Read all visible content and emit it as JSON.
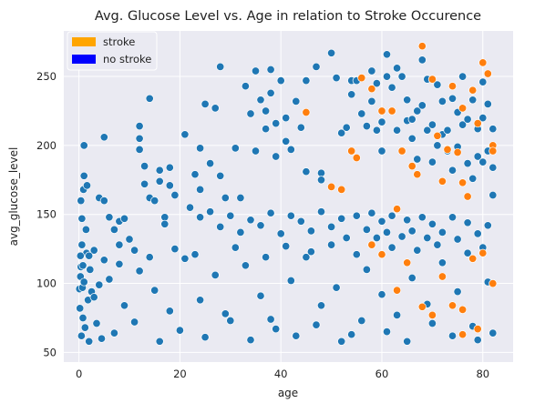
{
  "chart_data": {
    "type": "scatter",
    "title": "Avg. Glucose Level vs. Age in relation to Stroke Occurence",
    "xlabel": "age",
    "ylabel": "avg_glucose_level",
    "xlim": [
      -3,
      86
    ],
    "ylim": [
      43,
      283
    ],
    "xticks": [
      0,
      20,
      40,
      60,
      80
    ],
    "yticks": [
      50,
      100,
      150,
      200,
      250
    ],
    "grid": true,
    "background": "#eaeaf2",
    "legend": {
      "placement": "top-left",
      "entries": [
        {
          "label": "stroke",
          "color": "#ffa500"
        },
        {
          "label": "no stroke",
          "color": "#0000ff"
        }
      ]
    },
    "series": [
      {
        "color": "#1f77b4",
        "sampled": true,
        "points": [
          [
            0.1,
            96
          ],
          [
            0.2,
            82
          ],
          [
            0.3,
            105
          ],
          [
            0.4,
            112
          ],
          [
            0.5,
            62
          ],
          [
            0.6,
            128
          ],
          [
            0.7,
            97
          ],
          [
            0.8,
            75
          ],
          [
            1,
            101
          ],
          [
            1.2,
            68
          ],
          [
            1.5,
            122
          ],
          [
            1.8,
            88
          ],
          [
            2,
            58
          ],
          [
            2.2,
            110
          ],
          [
            2.5,
            94
          ],
          [
            3,
            124
          ],
          [
            3.5,
            71
          ],
          [
            4,
            99
          ],
          [
            4.5,
            60
          ],
          [
            5,
            117
          ],
          [
            1,
            200
          ],
          [
            1,
            178
          ],
          [
            0.4,
            160
          ],
          [
            0.9,
            168
          ],
          [
            1.6,
            171
          ],
          [
            0.6,
            147
          ],
          [
            1.4,
            139
          ],
          [
            0.3,
            120
          ],
          [
            0.8,
            113
          ],
          [
            5,
            206
          ],
          [
            4,
            162
          ],
          [
            5,
            160
          ],
          [
            6,
            148
          ],
          [
            8,
            145
          ],
          [
            8,
            128
          ],
          [
            7,
            139
          ],
          [
            9,
            147
          ],
          [
            10,
            132
          ],
          [
            11,
            124
          ],
          [
            12,
            214
          ],
          [
            12,
            205
          ],
          [
            12,
            197
          ],
          [
            13,
            185
          ],
          [
            13,
            172
          ],
          [
            14,
            234
          ],
          [
            14,
            162
          ],
          [
            15,
            160
          ],
          [
            16,
            182
          ],
          [
            16,
            174
          ],
          [
            17,
            148
          ],
          [
            17,
            143
          ],
          [
            18,
            184
          ],
          [
            18,
            171
          ],
          [
            19,
            164
          ],
          [
            21,
            208
          ],
          [
            23,
            179
          ],
          [
            24,
            198
          ],
          [
            24,
            168
          ],
          [
            25,
            230
          ],
          [
            26,
            187
          ],
          [
            27,
            227
          ],
          [
            28,
            257
          ],
          [
            28,
            178
          ],
          [
            29,
            162
          ],
          [
            31,
            198
          ],
          [
            32,
            162
          ],
          [
            33,
            243
          ],
          [
            34,
            223
          ],
          [
            35,
            254
          ],
          [
            35,
            196
          ],
          [
            36,
            233
          ],
          [
            37,
            225
          ],
          [
            37,
            212
          ],
          [
            38,
            255
          ],
          [
            38,
            238
          ],
          [
            39,
            216
          ],
          [
            39,
            192
          ],
          [
            40,
            247
          ],
          [
            41,
            220
          ],
          [
            41,
            203
          ],
          [
            42,
            197
          ],
          [
            43,
            232
          ],
          [
            44,
            213
          ],
          [
            45,
            247
          ],
          [
            45,
            181
          ],
          [
            47,
            257
          ],
          [
            48,
            180
          ],
          [
            48,
            175
          ],
          [
            50,
            267
          ],
          [
            51,
            249
          ],
          [
            52,
            209
          ],
          [
            53,
            213
          ],
          [
            54,
            247
          ],
          [
            54,
            237
          ],
          [
            55,
            247
          ],
          [
            56,
            223
          ],
          [
            57,
            214
          ],
          [
            58,
            254
          ],
          [
            58,
            232
          ],
          [
            59,
            245
          ],
          [
            59,
            211
          ],
          [
            60,
            217
          ],
          [
            60,
            196
          ],
          [
            61,
            266
          ],
          [
            61,
            250
          ],
          [
            62,
            242
          ],
          [
            63,
            256
          ],
          [
            63,
            211
          ],
          [
            64,
            250
          ],
          [
            65,
            233
          ],
          [
            65,
            218
          ],
          [
            66,
            219
          ],
          [
            66,
            205
          ],
          [
            67,
            225
          ],
          [
            67,
            190
          ],
          [
            68,
            262
          ],
          [
            68,
            229
          ],
          [
            69,
            248
          ],
          [
            69,
            211
          ],
          [
            70,
            215
          ],
          [
            70,
            188
          ],
          [
            71,
            244
          ],
          [
            71,
            200
          ],
          [
            72,
            232
          ],
          [
            72,
            208
          ],
          [
            73,
            211
          ],
          [
            73,
            196
          ],
          [
            74,
            234
          ],
          [
            74,
            182
          ],
          [
            75,
            224
          ],
          [
            75,
            199
          ],
          [
            76,
            250
          ],
          [
            76,
            215
          ],
          [
            77,
            219
          ],
          [
            77,
            187
          ],
          [
            78,
            233
          ],
          [
            78,
            176
          ],
          [
            79,
            212
          ],
          [
            79,
            192
          ],
          [
            80,
            246
          ],
          [
            80,
            220
          ],
          [
            80,
            188
          ],
          [
            81,
            230
          ],
          [
            81,
            196
          ],
          [
            82,
            212
          ],
          [
            82,
            184
          ],
          [
            82,
            164
          ],
          [
            44,
            145
          ],
          [
            46,
            138
          ],
          [
            48,
            152
          ],
          [
            50,
            141
          ],
          [
            52,
            147
          ],
          [
            53,
            133
          ],
          [
            55,
            149
          ],
          [
            57,
            139
          ],
          [
            58,
            151
          ],
          [
            59,
            133
          ],
          [
            60,
            145
          ],
          [
            61,
            137
          ],
          [
            62,
            149
          ],
          [
            64,
            134
          ],
          [
            65,
            146
          ],
          [
            66,
            138
          ],
          [
            68,
            148
          ],
          [
            69,
            133
          ],
          [
            70,
            143
          ],
          [
            72,
            137
          ],
          [
            74,
            148
          ],
          [
            75,
            132
          ],
          [
            77,
            144
          ],
          [
            79,
            136
          ],
          [
            81,
            142
          ],
          [
            22,
            155
          ],
          [
            24,
            148
          ],
          [
            26,
            152
          ],
          [
            28,
            141
          ],
          [
            30,
            149
          ],
          [
            32,
            137
          ],
          [
            34,
            146
          ],
          [
            36,
            142
          ],
          [
            38,
            151
          ],
          [
            40,
            136
          ],
          [
            42,
            149
          ],
          [
            3,
            90
          ],
          [
            6,
            103
          ],
          [
            9,
            84
          ],
          [
            12,
            109
          ],
          [
            15,
            95
          ],
          [
            18,
            80
          ],
          [
            21,
            118
          ],
          [
            24,
            88
          ],
          [
            27,
            106
          ],
          [
            30,
            73
          ],
          [
            33,
            113
          ],
          [
            36,
            91
          ],
          [
            39,
            67
          ],
          [
            42,
            102
          ],
          [
            45,
            119
          ],
          [
            48,
            84
          ],
          [
            51,
            97
          ],
          [
            54,
            63
          ],
          [
            57,
            110
          ],
          [
            60,
            92
          ],
          [
            63,
            77
          ],
          [
            66,
            104
          ],
          [
            69,
            85
          ],
          [
            72,
            115
          ],
          [
            75,
            94
          ],
          [
            78,
            69
          ],
          [
            81,
            101
          ],
          [
            7,
            64
          ],
          [
            11,
            72
          ],
          [
            16,
            58
          ],
          [
            20,
            66
          ],
          [
            25,
            61
          ],
          [
            29,
            78
          ],
          [
            34,
            59
          ],
          [
            38,
            74
          ],
          [
            43,
            62
          ],
          [
            47,
            70
          ],
          [
            52,
            58
          ],
          [
            56,
            73
          ],
          [
            61,
            65
          ],
          [
            65,
            58
          ],
          [
            70,
            71
          ],
          [
            74,
            62
          ],
          [
            79,
            59
          ],
          [
            82,
            64
          ],
          [
            2,
            120
          ],
          [
            8,
            114
          ],
          [
            14,
            119
          ],
          [
            19,
            125
          ],
          [
            23,
            121
          ],
          [
            31,
            126
          ],
          [
            37,
            119
          ],
          [
            41,
            127
          ],
          [
            46,
            123
          ],
          [
            50,
            128
          ],
          [
            55,
            121
          ],
          [
            62,
            126
          ],
          [
            67,
            124
          ],
          [
            71,
            128
          ],
          [
            77,
            122
          ],
          [
            80,
            126
          ]
        ]
      },
      {
        "color": "#ff7f0e",
        "sampled": true,
        "points": [
          [
            45,
            224
          ],
          [
            50,
            170
          ],
          [
            52,
            168
          ],
          [
            54,
            196
          ],
          [
            55,
            191
          ],
          [
            56,
            249
          ],
          [
            58,
            241
          ],
          [
            60,
            225
          ],
          [
            63,
            154
          ],
          [
            64,
            196
          ],
          [
            66,
            185
          ],
          [
            67,
            179
          ],
          [
            68,
            272
          ],
          [
            70,
            248
          ],
          [
            71,
            207
          ],
          [
            72,
            174
          ],
          [
            74,
            243
          ],
          [
            75,
            195
          ],
          [
            76,
            227
          ],
          [
            77,
            163
          ],
          [
            78,
            240
          ],
          [
            79,
            216
          ],
          [
            80,
            260
          ],
          [
            81,
            252
          ],
          [
            82,
            200
          ],
          [
            82,
            196
          ],
          [
            76,
            173
          ],
          [
            73,
            197
          ],
          [
            62,
            225
          ],
          [
            58,
            128
          ],
          [
            60,
            121
          ],
          [
            65,
            115
          ],
          [
            72,
            105
          ],
          [
            74,
            84
          ],
          [
            76,
            81
          ],
          [
            78,
            118
          ],
          [
            80,
            122
          ],
          [
            82,
            100
          ],
          [
            63,
            95
          ],
          [
            68,
            83
          ],
          [
            70,
            77
          ],
          [
            76,
            63
          ],
          [
            79,
            67
          ]
        ]
      }
    ]
  }
}
